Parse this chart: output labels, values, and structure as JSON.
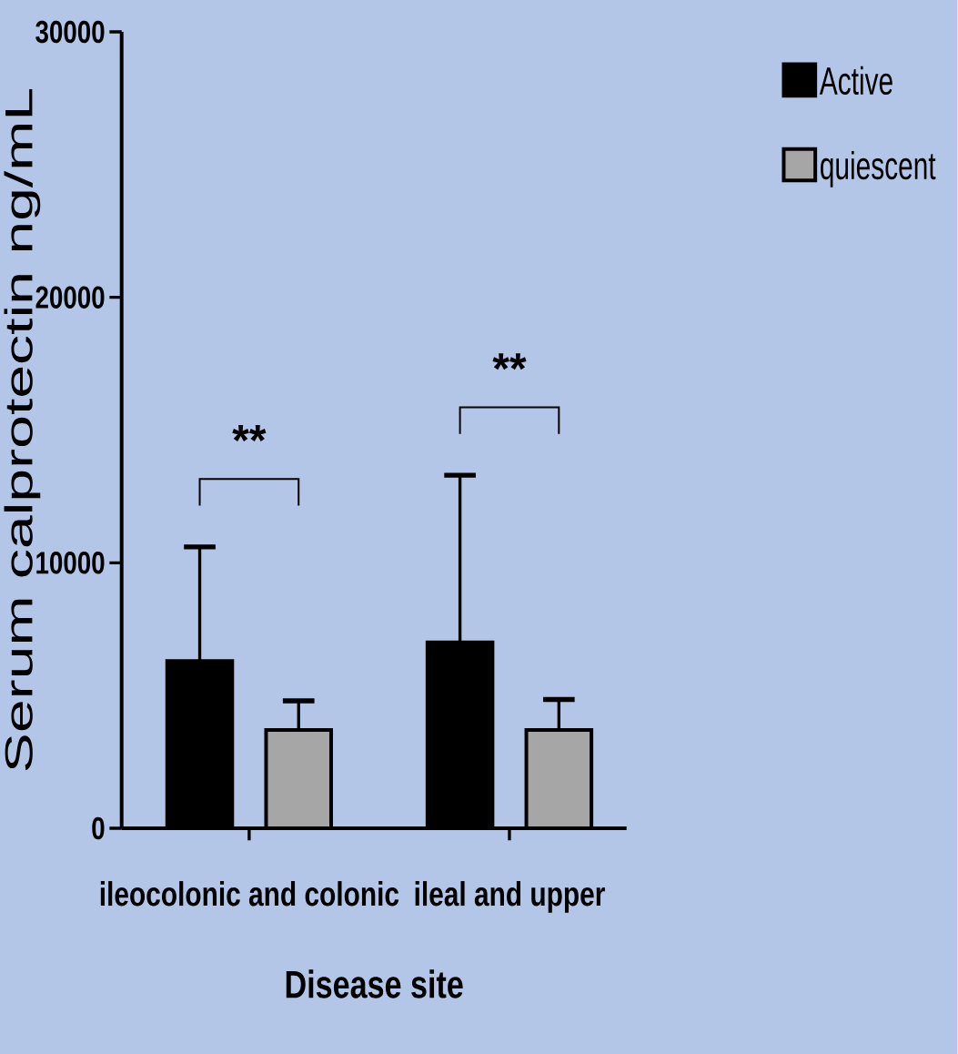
{
  "chart_data": {
    "type": "bar",
    "xlabel": "Disease site",
    "ylabel": "Serum calprotectin ng/mL",
    "categories": [
      "ileocolonic and colonic",
      "ileal and upper"
    ],
    "series": [
      {
        "name": "Active",
        "color": "#000000",
        "values": [
          6300,
          7000
        ],
        "errors": [
          [
            6300,
            10600
          ],
          [
            7000,
            13300
          ]
        ]
      },
      {
        "name": "quiescent",
        "color": "#a6a6a6",
        "values": [
          3700,
          3700
        ],
        "errors": [
          [
            3700,
            4800
          ],
          [
            3700,
            4850
          ]
        ]
      }
    ],
    "ylim": [
      0,
      30000
    ],
    "yticks": [
      0,
      10000,
      20000,
      30000
    ],
    "grid": false,
    "legend": "top right",
    "annotations": [
      "**",
      "**"
    ]
  }
}
